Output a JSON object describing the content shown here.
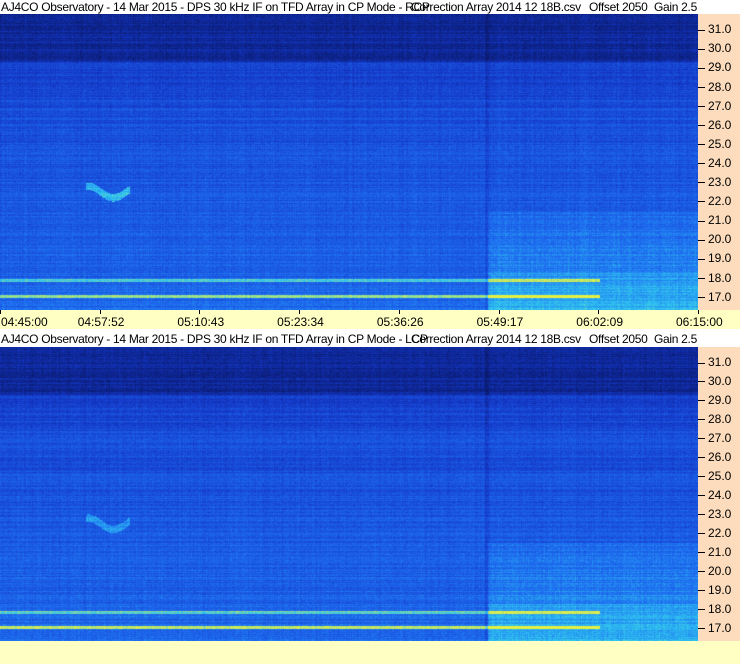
{
  "chart_data": [
    {
      "type": "heatmap",
      "title": "AJ4CO Observatory - 14 Mar 2015 - DPS 30 kHz IF on TFD Array in CP Mode - RCP",
      "correction": "Correction Array 2014 12 18B.csv",
      "offset": "Offset 2050",
      "gain": "Gain 2.5",
      "x_ticks": [
        "04:45:00",
        "04:57:52",
        "05:10:43",
        "05:23:34",
        "05:36:26",
        "05:49:17",
        "06:02:09",
        "06:15:00"
      ],
      "y_ticks": [
        "31.0",
        "30.0",
        "29.0",
        "28.0",
        "27.0",
        "26.0",
        "25.0",
        "24.0",
        "23.0",
        "22.0",
        "21.0",
        "20.0",
        "19.0",
        "18.0",
        "17.0"
      ],
      "ylim": [
        16.3,
        31.8
      ],
      "xlim": [
        "04:45:00",
        "06:15:00"
      ],
      "colormap": [
        "#0a1a6e",
        "#1438c8",
        "#1e6cf0",
        "#30c8f0",
        "#e8f040"
      ]
    },
    {
      "type": "heatmap",
      "title": "AJ4CO Observatory - 14 Mar 2015 - DPS 30 kHz IF on TFD Array in CP Mode - LCP",
      "correction": "Correction Array 2014 12 18B.csv",
      "offset": "Offset 2050",
      "gain": "Gain 2.5",
      "y_ticks": [
        "31.0",
        "30.0",
        "29.0",
        "28.0",
        "27.0",
        "26.0",
        "25.0",
        "24.0",
        "23.0",
        "22.0",
        "21.0",
        "20.0",
        "19.0",
        "18.0",
        "17.0"
      ],
      "ylim": [
        16.3,
        31.8
      ],
      "xlim": [
        "04:45:00",
        "06:15:00"
      ]
    }
  ]
}
